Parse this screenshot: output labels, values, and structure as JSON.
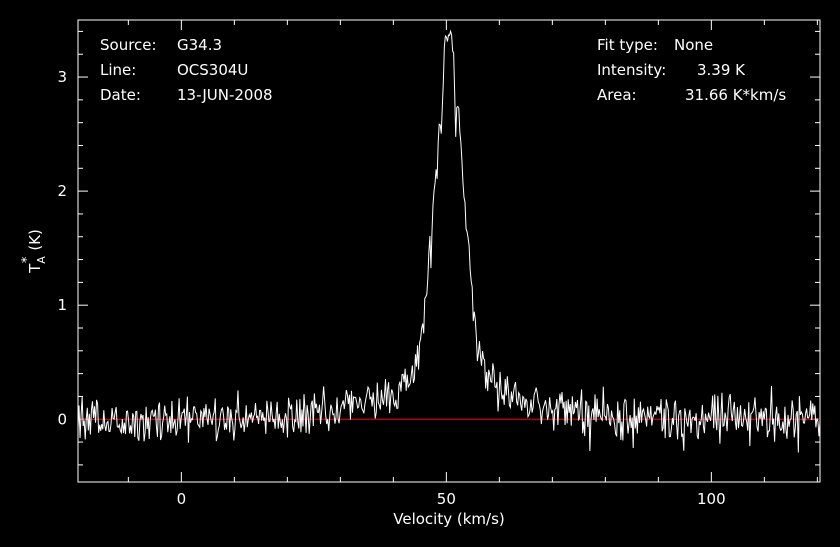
{
  "chart_data": {
    "type": "line",
    "xlabel": "Velocity (km/s)",
    "ylabel": {
      "base": "T",
      "sup": "*",
      "sub": "A",
      "unit": "(K)"
    },
    "xlim": [
      -19.5,
      120.5
    ],
    "ylim": [
      -0.55,
      3.5
    ],
    "x_ticks": [
      0,
      50,
      100
    ],
    "y_ticks": [
      0,
      1,
      2,
      3
    ],
    "x_tick_labels": [
      "0",
      "50",
      "100"
    ],
    "y_tick_labels": [
      "0",
      "1",
      "2",
      "3"
    ],
    "baseline": 0,
    "grid": false,
    "info_left": [
      {
        "key": "Source:",
        "value": "G34.3"
      },
      {
        "key": "Line:",
        "value": "OCS304U"
      },
      {
        "key": "Date:",
        "value": "13-JUN-2008"
      }
    ],
    "info_right": [
      {
        "key": "Fit type:",
        "value": "None"
      },
      {
        "key": "Intensity:",
        "value": "3.39 K"
      },
      {
        "key": "Area:",
        "value": "31.66 K*km/s"
      }
    ],
    "spectrum": {
      "v_start": -19.5,
      "v_end": 120.5,
      "channels": 720,
      "peak_velocity": 50.5,
      "peak_intensity": 3.39,
      "noise_rms": 0.1,
      "seed": 13
    },
    "colors": {
      "background": "#000000",
      "axes": "#ffffff",
      "spectrum": "#ffffff",
      "baseline": "#ff0000",
      "text": "#ffffff"
    }
  }
}
